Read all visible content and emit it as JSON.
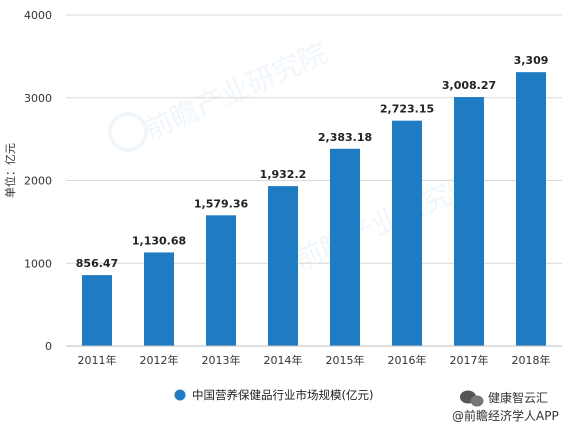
{
  "chart_data": {
    "type": "bar",
    "categories": [
      "2011年",
      "2012年",
      "2013年",
      "2014年",
      "2015年",
      "2016年",
      "2017年",
      "2018年"
    ],
    "values": [
      856.47,
      1130.68,
      1579.36,
      1932.2,
      2383.18,
      2723.15,
      3008.27,
      3309
    ],
    "value_labels": [
      "856.47",
      "1,130.68",
      "1,579.36",
      "1,932.2",
      "2,383.18",
      "2,723.15",
      "3,008.27",
      "3,309"
    ],
    "ylabel": "单位：亿元",
    "ylim": [
      0,
      4000
    ],
    "yticks": [
      0,
      1000,
      2000,
      3000,
      4000
    ],
    "ytick_labels": [
      "0",
      "1000",
      "2000",
      "3000",
      "4000"
    ],
    "grid": "horizontal",
    "legend_position": "bottom",
    "series": [
      {
        "name": "中国营养保健品行业市场规模(亿元)",
        "color": "#1f7bc2"
      }
    ]
  },
  "watermark": {
    "line1": "健康智云汇",
    "line2": "@前瞻经济学人APP",
    "background_text": "前瞻产业研究院"
  },
  "colors": {
    "bar": "#1f7bc2",
    "grid": "#d9d9d9",
    "axis": "#bfbfbf"
  }
}
